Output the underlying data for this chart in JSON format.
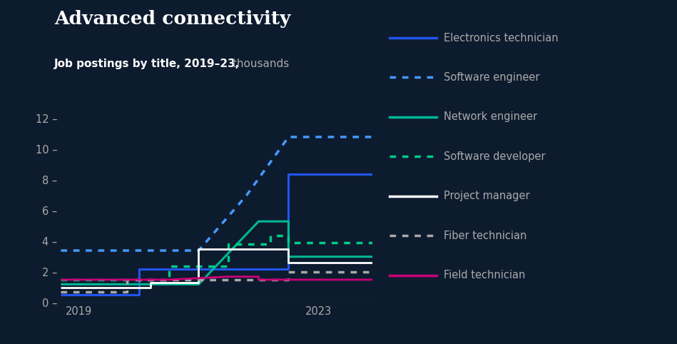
{
  "title": "Advanced connectivity",
  "subtitle_bold": "Job postings by title, 2019–23,",
  "subtitle_normal": " thousands",
  "bg_color": "#0d1b2e",
  "text_color": "#ffffff",
  "tick_color": "#aaaaaa",
  "ylim": [
    0,
    13.0
  ],
  "yticks": [
    0,
    2,
    4,
    6,
    8,
    10,
    12
  ],
  "xlim": [
    2018.7,
    2023.9
  ],
  "series": [
    {
      "label": "Electronics technician",
      "color": "#2255ee",
      "linestyle": "solid",
      "linewidth": 2.2,
      "x": [
        2018.7,
        2020.0,
        2020.0,
        2021.5,
        2021.5,
        2022.5,
        2022.5,
        2023.9
      ],
      "y": [
        0.5,
        0.5,
        2.2,
        2.2,
        2.2,
        2.2,
        8.4,
        8.4
      ]
    },
    {
      "label": "Software engineer",
      "color": "#4499ff",
      "linestyle": "dotted",
      "linewidth": 2.5,
      "x": [
        2018.7,
        2021.0,
        2021.0,
        2021.8,
        2021.8,
        2022.5,
        2022.5,
        2023.9
      ],
      "y": [
        3.4,
        3.4,
        3.4,
        7.0,
        7.0,
        10.8,
        10.8,
        10.8
      ]
    },
    {
      "label": "Network engineer",
      "color": "#00b894",
      "linestyle": "solid",
      "linewidth": 2.2,
      "x": [
        2018.7,
        2021.0,
        2021.0,
        2022.0,
        2022.0,
        2022.5,
        2022.5,
        2023.9
      ],
      "y": [
        1.2,
        1.2,
        1.2,
        5.3,
        5.3,
        5.3,
        3.0,
        3.0
      ]
    },
    {
      "label": "Software developer",
      "color": "#00cc88",
      "linestyle": "dotted",
      "linewidth": 2.5,
      "x": [
        2018.7,
        2020.5,
        2020.5,
        2021.5,
        2021.5,
        2022.2,
        2022.2,
        2022.5,
        2022.5,
        2023.9
      ],
      "y": [
        1.5,
        1.5,
        2.4,
        2.4,
        3.8,
        3.8,
        4.4,
        4.4,
        3.9,
        3.9
      ]
    },
    {
      "label": "Project manager",
      "color": "#ffffff",
      "linestyle": "solid",
      "linewidth": 2.0,
      "x": [
        2018.7,
        2020.2,
        2020.2,
        2021.0,
        2021.0,
        2022.5,
        2022.5,
        2023.9
      ],
      "y": [
        1.0,
        1.0,
        1.3,
        1.3,
        3.5,
        3.5,
        2.6,
        2.6
      ]
    },
    {
      "label": "Fiber technician",
      "color": "#aaaaaa",
      "linestyle": "dotted",
      "linewidth": 2.5,
      "x": [
        2018.7,
        2019.8,
        2019.8,
        2022.5,
        2022.5,
        2023.9
      ],
      "y": [
        0.7,
        0.7,
        1.5,
        1.5,
        2.0,
        2.0
      ]
    },
    {
      "label": "Field technician",
      "color": "#cc0077",
      "linestyle": "solid",
      "linewidth": 2.0,
      "x": [
        2018.7,
        2020.5,
        2020.5,
        2021.5,
        2021.5,
        2022.0,
        2022.0,
        2023.9
      ],
      "y": [
        1.5,
        1.5,
        1.5,
        1.7,
        1.7,
        1.7,
        1.5,
        1.5
      ]
    }
  ],
  "legend_items": [
    {
      "label": "Electronics technician",
      "color": "#2255ee",
      "linestyle": "solid"
    },
    {
      "label": "Software engineer",
      "color": "#4499ff",
      "linestyle": "dotted"
    },
    {
      "label": "Network engineer",
      "color": "#00b894",
      "linestyle": "solid"
    },
    {
      "label": "Software developer",
      "color": "#00cc88",
      "linestyle": "dotted"
    },
    {
      "label": "Project manager",
      "color": "#ffffff",
      "linestyle": "solid"
    },
    {
      "label": "Fiber technician",
      "color": "#aaaaaa",
      "linestyle": "dotted"
    },
    {
      "label": "Field technician",
      "color": "#cc0077",
      "linestyle": "solid"
    }
  ]
}
